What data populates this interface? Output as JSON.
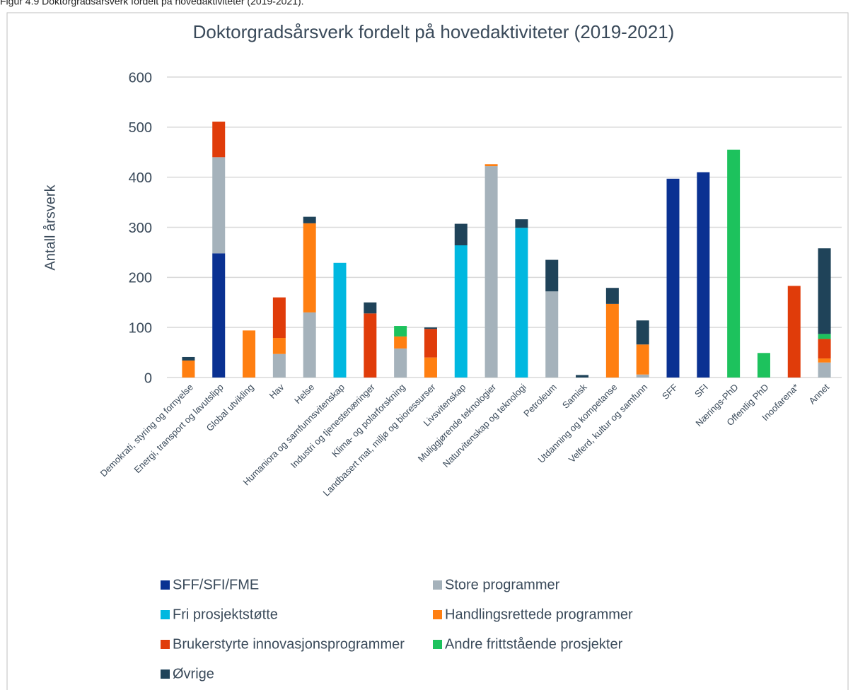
{
  "caption": "Figur 4.9 Doktorgradsårsverk fordelt på hovedaktiviteter (2019-2021).",
  "chart_data": {
    "type": "stacked_bar",
    "title": "Doktorgradsårsverk fordelt på hovedaktiviteter (2019-2021)",
    "y_label": "Antall årsverk",
    "categories": [
      "Demokrati, styring og fornyelse",
      "Energi, transport og lavutslipp",
      "Global utvikling",
      "Hav",
      "Helse",
      "Humaniora og samfunnsvitenskap",
      "Industri og tjenestenæringer",
      "Klima- og polarforskning",
      "Landbasert mat, miljø og bioressurser",
      "Livsvitenskap",
      "Muliggjørende teknologier",
      "Naturvitenskap og teknologi",
      "Petroleum",
      "Samisk",
      "Utdanning og kompetanse",
      "Velferd, kultur og samfunn",
      "SFF",
      "SFI",
      "Nærings-PhD",
      "Offentlig PhD",
      "Inoofarena*",
      "Annet"
    ],
    "series": [
      {
        "name": "SFF/SFI/FME",
        "color": "#0a3192",
        "values": [
          0,
          248,
          0,
          0,
          0,
          0,
          0,
          0,
          0,
          0,
          0,
          0,
          0,
          0,
          0,
          0,
          397,
          410,
          0,
          0,
          0,
          0
        ]
      },
      {
        "name": "Store programmer",
        "color": "#a5b2bb",
        "values": [
          0,
          192,
          0,
          47,
          130,
          0,
          0,
          58,
          0,
          0,
          422,
          0,
          172,
          0,
          0,
          6,
          0,
          0,
          0,
          0,
          0,
          30
        ]
      },
      {
        "name": "Fri prosjektstøtte",
        "color": "#00b8e0",
        "values": [
          0,
          0,
          0,
          0,
          0,
          229,
          0,
          0,
          0,
          264,
          0,
          299,
          0,
          0,
          0,
          0,
          0,
          0,
          0,
          0,
          0,
          0
        ]
      },
      {
        "name": "Handlingsrettede programmer",
        "color": "#ff7f11",
        "values": [
          34,
          0,
          94,
          32,
          178,
          0,
          0,
          24,
          40,
          0,
          4,
          0,
          0,
          0,
          147,
          60,
          0,
          0,
          0,
          0,
          0,
          8
        ]
      },
      {
        "name": "Brukerstyrte innovasjonsprogrammer",
        "color": "#e03c0a",
        "values": [
          0,
          71,
          0,
          81,
          0,
          0,
          128,
          0,
          57,
          0,
          0,
          0,
          0,
          0,
          0,
          0,
          0,
          0,
          0,
          0,
          183,
          39
        ]
      },
      {
        "name": "Andre frittstående prosjekter",
        "color": "#1dc25d",
        "values": [
          0,
          0,
          0,
          0,
          0,
          0,
          0,
          21,
          0,
          0,
          0,
          0,
          0,
          0,
          0,
          0,
          0,
          0,
          455,
          49,
          0,
          10
        ]
      },
      {
        "name": "Øvrige",
        "color": "#1f4359",
        "values": [
          7,
          0,
          0,
          0,
          13,
          0,
          22,
          0,
          3,
          43,
          0,
          17,
          63,
          5,
          32,
          48,
          0,
          0,
          0,
          0,
          0,
          171
        ]
      }
    ],
    "ylim": [
      0,
      600
    ],
    "yticks": [
      0,
      100,
      200,
      300,
      400,
      500,
      600
    ],
    "grid": true,
    "legend": "bottom"
  }
}
